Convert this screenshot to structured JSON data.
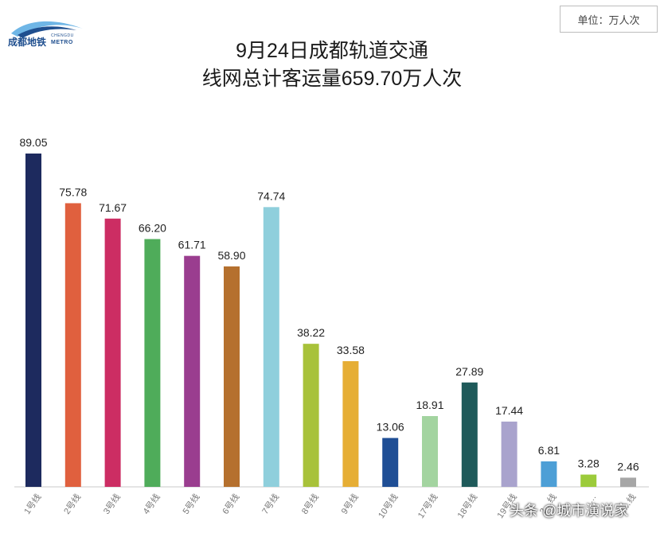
{
  "logo": {
    "cn": "成都地铁",
    "en_top": "CHENGDU",
    "en_bottom": "METRO"
  },
  "unit_label": "单位：万人次",
  "watermark": "头条 @城市演说家",
  "colors": {
    "axis": "#c8c8c8",
    "logo_blue": "#1f4f8f",
    "logo_light": "#6fb6e6"
  },
  "chart_data": {
    "type": "bar",
    "title": "9月24日成都轨道交通",
    "subtitle": "线网总计客运量659.70万人次",
    "categories": [
      "1号线",
      "2号线",
      "3号线",
      "4号线",
      "5号线",
      "6号线",
      "7号线",
      "8号线",
      "9号线",
      "10号线",
      "17号线",
      "18号线",
      "19号线",
      "2…线",
      "…",
      "（…线"
    ],
    "values": [
      89.05,
      75.78,
      71.67,
      66.2,
      61.71,
      58.9,
      74.74,
      38.22,
      33.58,
      13.06,
      18.91,
      27.89,
      17.44,
      6.81,
      3.28,
      2.46
    ],
    "value_labels": [
      "89.05",
      "75.78",
      "71.67",
      "66.20",
      "61.71",
      "58.90",
      "74.74",
      "38.22",
      "33.58",
      "13.06",
      "18.91",
      "27.89",
      "17.44",
      "6.81",
      "3.28",
      "2.46"
    ],
    "colors": [
      "#1d2a5e",
      "#e0603e",
      "#cc2d63",
      "#4fac5a",
      "#9a3d8f",
      "#b5702e",
      "#8fcfdc",
      "#a8c23a",
      "#e6ae35",
      "#1f4e95",
      "#a3d4a0",
      "#1f5a5a",
      "#a9a3cd",
      "#4d9fd6",
      "#9ccb3b",
      "#a6a6a6"
    ],
    "ylim": [
      0,
      90
    ],
    "legend": "none",
    "grid": false
  }
}
